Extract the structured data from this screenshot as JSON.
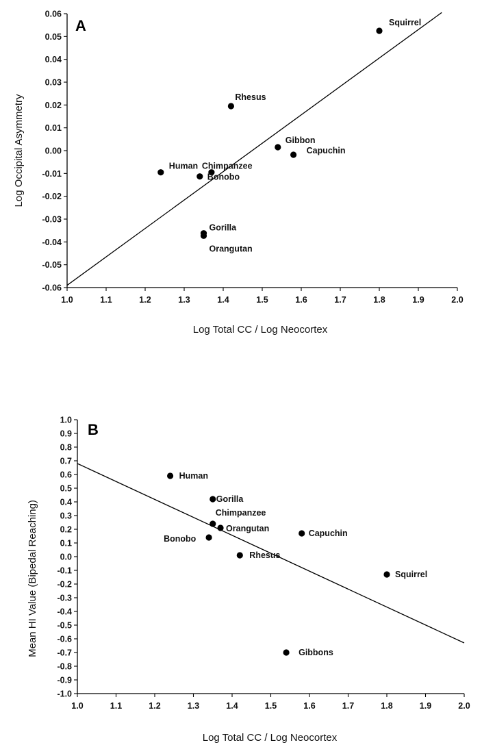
{
  "chart_data": [
    {
      "type": "scatter",
      "panel_label": "A",
      "xlabel": "Log Total CC / Log Neocortex",
      "ylabel": "Log Occipital Asymmetry",
      "xlim": [
        1.0,
        2.0
      ],
      "ylim": [
        -0.06,
        0.06
      ],
      "x_ticks": [
        1.0,
        1.1,
        1.2,
        1.3,
        1.4,
        1.5,
        1.6,
        1.7,
        1.8,
        1.9,
        2.0
      ],
      "y_ticks": [
        -0.06,
        -0.05,
        -0.04,
        -0.03,
        -0.02,
        -0.01,
        0.0,
        0.01,
        0.02,
        0.03,
        0.04,
        0.05,
        0.06
      ],
      "x_tick_labels": [
        "1.0",
        "1.1",
        "1.2",
        "1.3",
        "1.4",
        "1.5",
        "1.6",
        "1.7",
        "1.8",
        "1.9",
        "2.0"
      ],
      "y_tick_labels": [
        "-0.06",
        "-0.05",
        "-0.04",
        "-0.03",
        "-0.02",
        "-0.01",
        "0.00",
        "0.01",
        "0.02",
        "0.03",
        "0.04",
        "0.05",
        "0.06"
      ],
      "points": [
        {
          "label": "Squirrel",
          "x": 1.8,
          "y": 0.0525
        },
        {
          "label": "Rhesus",
          "x": 1.42,
          "y": 0.0195
        },
        {
          "label": "Gibbon",
          "x": 1.54,
          "y": 0.0015
        },
        {
          "label": "Capuchin",
          "x": 1.58,
          "y": -0.0018
        },
        {
          "label": "Human",
          "x": 1.24,
          "y": -0.0095
        },
        {
          "label": "Chimpanzee",
          "x": 1.37,
          "y": -0.0095
        },
        {
          "label": "Bonobo",
          "x": 1.34,
          "y": -0.0113
        },
        {
          "label": "Gorilla",
          "x": 1.35,
          "y": -0.0362
        },
        {
          "label": "Orangutan",
          "x": 1.35,
          "y": -0.0373
        }
      ],
      "fit_line": {
        "x": [
          1.0,
          1.96
        ],
        "y": [
          -0.059,
          0.0605
        ]
      },
      "grid": false,
      "legend": false
    },
    {
      "type": "scatter",
      "panel_label": "B",
      "xlabel": "Log Total CC / Log Neocortex",
      "ylabel": "Mean HI Value (Bipedal Reaching)",
      "xlim": [
        1.0,
        2.0
      ],
      "ylim": [
        -1.0,
        1.0
      ],
      "x_ticks": [
        1.0,
        1.1,
        1.2,
        1.3,
        1.4,
        1.5,
        1.6,
        1.7,
        1.8,
        1.9,
        2.0
      ],
      "y_ticks": [
        -1.0,
        -0.9,
        -0.8,
        -0.7,
        -0.6,
        -0.5,
        -0.4,
        -0.3,
        -0.2,
        -0.1,
        0.0,
        0.1,
        0.2,
        0.3,
        0.4,
        0.5,
        0.6,
        0.7,
        0.8,
        0.9,
        1.0
      ],
      "x_tick_labels": [
        "1.0",
        "1.1",
        "1.2",
        "1.3",
        "1.4",
        "1.5",
        "1.6",
        "1.7",
        "1.8",
        "1.9",
        "2.0"
      ],
      "y_tick_labels": [
        "-1.0",
        "-0.9",
        "-0.8",
        "-0.7",
        "-0.6",
        "-0.5",
        "-0.4",
        "-0.3",
        "-0.2",
        "-0.1",
        "0.0",
        "0.1",
        "0.2",
        "0.3",
        "0.4",
        "0.5",
        "0.6",
        "0.7",
        "0.8",
        "0.9",
        "1.0"
      ],
      "points": [
        {
          "label": "Human",
          "x": 1.24,
          "y": 0.59
        },
        {
          "label": "Gorilla",
          "x": 1.35,
          "y": 0.42
        },
        {
          "label": "Chimpanzee",
          "x": 1.35,
          "y": 0.24
        },
        {
          "label": "Orangutan",
          "x": 1.37,
          "y": 0.21
        },
        {
          "label": "Bonobo",
          "x": 1.34,
          "y": 0.14
        },
        {
          "label": "Capuchin",
          "x": 1.58,
          "y": 0.17
        },
        {
          "label": "Rhesus",
          "x": 1.42,
          "y": 0.01
        },
        {
          "label": "Squirrel",
          "x": 1.8,
          "y": -0.13
        },
        {
          "label": "Gibbons",
          "x": 1.54,
          "y": -0.7
        }
      ],
      "fit_line": {
        "x": [
          1.0,
          2.0
        ],
        "y": [
          0.68,
          -0.63
        ]
      },
      "grid": false,
      "legend": false
    }
  ]
}
